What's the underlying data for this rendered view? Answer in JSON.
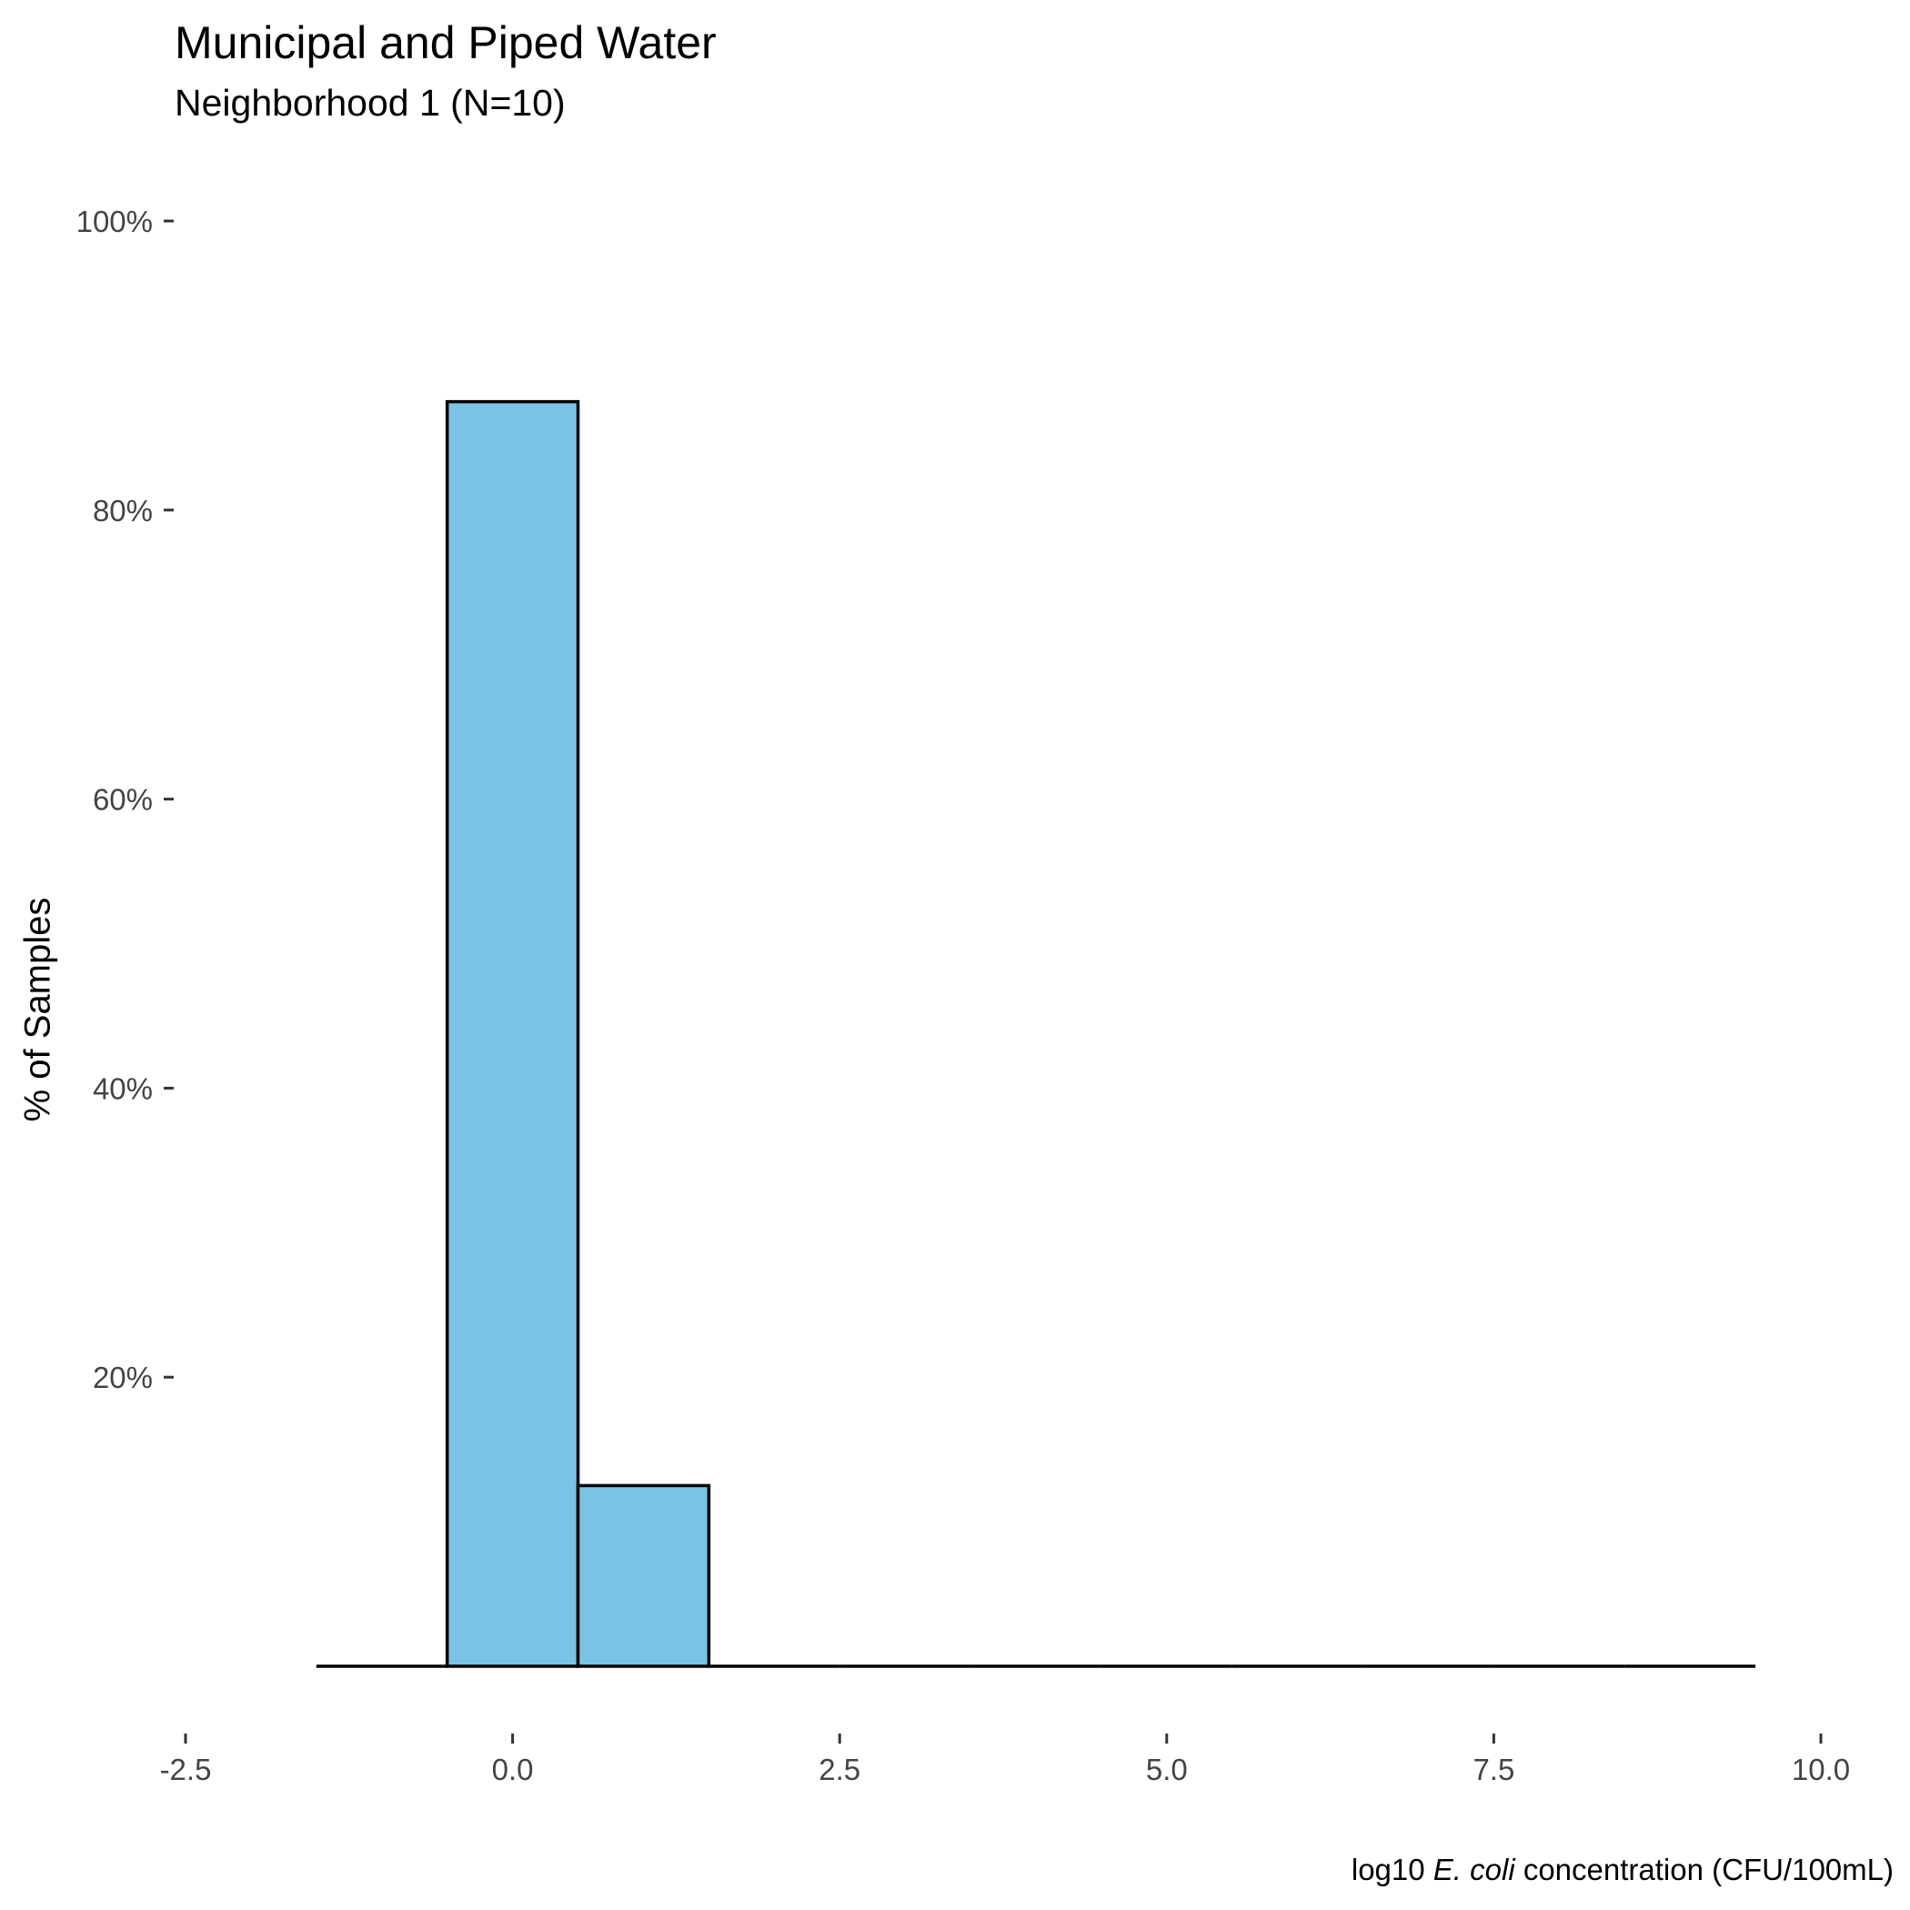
{
  "chart_data": {
    "type": "bar",
    "title": "Municipal and Piped Water",
    "subtitle": "Neighborhood 1 (N=10)",
    "ylabel": "% of Samples",
    "xlabel_prefix": "log10 ",
    "xlabel_italic": "E. coli",
    "xlabel_suffix": " concentration (CFU/100mL)",
    "xlim": [
      -2.5,
      10.0
    ],
    "ylim": [
      0,
      100
    ],
    "x_ticks": [
      {
        "value": -2.5,
        "label": "-2.5"
      },
      {
        "value": 0.0,
        "label": "0.0"
      },
      {
        "value": 2.5,
        "label": "2.5"
      },
      {
        "value": 5.0,
        "label": "5.0"
      },
      {
        "value": 7.5,
        "label": "7.5"
      },
      {
        "value": 10.0,
        "label": "10.0"
      }
    ],
    "y_ticks": [
      {
        "value": 20,
        "label": "20%"
      },
      {
        "value": 40,
        "label": "40%"
      },
      {
        "value": 60,
        "label": "60%"
      },
      {
        "value": 80,
        "label": "80%"
      },
      {
        "value": 100,
        "label": "100%"
      }
    ],
    "bin_width": 1,
    "bins": [
      {
        "x": -1,
        "value": 0
      },
      {
        "x": 0,
        "value": 87.5
      },
      {
        "x": 1,
        "value": 12.5
      },
      {
        "x": 2,
        "value": 0
      },
      {
        "x": 3,
        "value": 0
      },
      {
        "x": 4,
        "value": 0
      },
      {
        "x": 5,
        "value": 0
      },
      {
        "x": 6,
        "value": 0
      },
      {
        "x": 7,
        "value": 0
      },
      {
        "x": 8,
        "value": 0
      },
      {
        "x": 9,
        "value": 0
      }
    ],
    "grid": false,
    "legend": "none",
    "colors": {
      "fill": "#7AC3E4",
      "stroke": "#000000"
    }
  }
}
